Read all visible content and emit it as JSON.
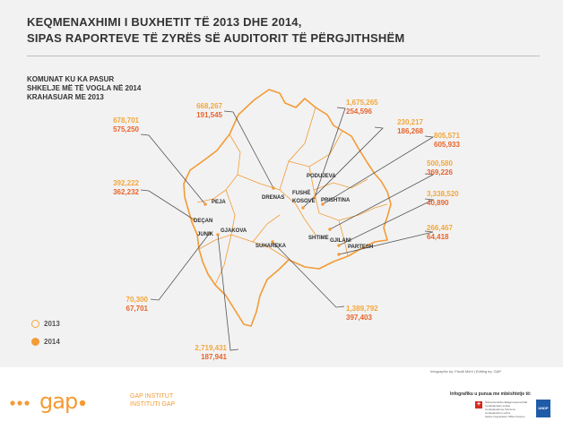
{
  "title_lines": [
    "KEQMENAXHIMI I BUXHETIT TË 2013 DHE 2014,",
    "SIPAS RAPORTEVE TË ZYRËS SË AUDITORIT TË PËRGJITHSHËM"
  ],
  "subtitle_lines": [
    "KOMUNAT KU KA PASUR",
    "SHKELJE MË TË VOGLA NË 2014",
    "KRAHASUAR ME 2013"
  ],
  "colors": {
    "y2013": "#f4a73b",
    "y2014": "#e8642c",
    "outline": "#f39b35",
    "leader": "#555555"
  },
  "municipalities": [
    {
      "name": "PEJA",
      "v2013": "678,701",
      "v2014": "575,250"
    },
    {
      "name": "DEÇAN",
      "v2013": "392,222",
      "v2014": "362,232"
    },
    {
      "name": "DRENAS",
      "v2013": "668,267",
      "v2014": "191,545"
    },
    {
      "name": "PODUJEVA",
      "v2013": "1,675,265",
      "v2014": "254,596"
    },
    {
      "name": "FUSHË KOSOVË",
      "v2013": "230,217",
      "v2014": "186,268"
    },
    {
      "name": "PRISHTINA",
      "v2013": "805,571",
      "v2014": "605,933"
    },
    {
      "name": "SHTIME",
      "v2013": "500,580",
      "v2014": "369,226"
    },
    {
      "name": "GJILANI",
      "v2013": "3,338,520",
      "v2014": "40,890"
    },
    {
      "name": "PARTESH",
      "v2013": "266,467",
      "v2014": "64,418"
    },
    {
      "name": "SUHAREKA",
      "v2013": "1,389,792",
      "v2014": "397,403"
    },
    {
      "name": "JUNIK",
      "v2013": "70,300",
      "v2014": "67,701"
    },
    {
      "name": "GJAKOVA",
      "v2013": "2,719,431",
      "v2014": "187,941"
    }
  ],
  "mun_label_lines": {
    "fushe_kosove": [
      "FUSHË",
      "KOSOVË"
    ]
  },
  "legend": {
    "y2013": "2013",
    "y2014": "2014"
  },
  "footer": {
    "logo_name": "gap",
    "institute_lines": [
      "GAP INSTITUT",
      "INSTITUTI GAP"
    ],
    "credit": "Infographic by: Fisnik Mehi | Editing by: GAP",
    "support": "Infografiku u punua me mbështetje të:",
    "swiss_lines": [
      "Schweizerische Eidgenossenschaft",
      "Confédération suisse",
      "Confederazione Svizzera",
      "Confederaziun svizra",
      "Swiss Cooperation Office Kosovo"
    ],
    "undp": "UNDP"
  }
}
